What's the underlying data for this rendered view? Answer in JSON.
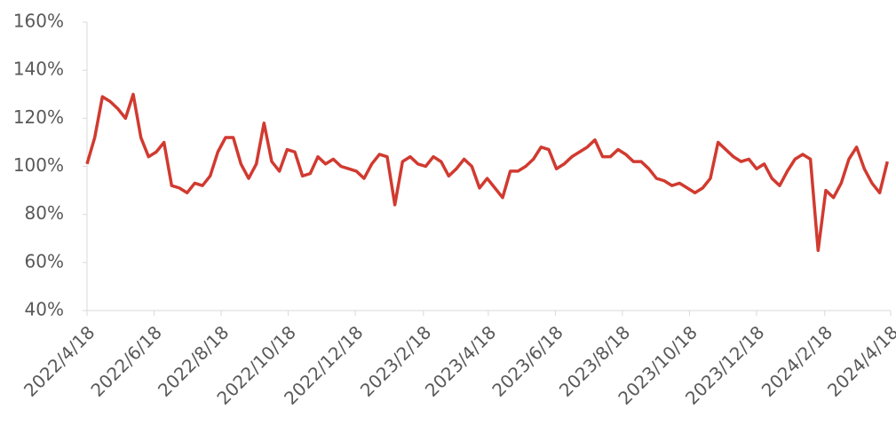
{
  "chart_data": {
    "type": "line",
    "x": [
      "2022/4/18",
      "2022/4/25",
      "2022/5/2",
      "2022/5/9",
      "2022/5/16",
      "2022/5/23",
      "2022/5/30",
      "2022/6/6",
      "2022/6/13",
      "2022/6/20",
      "2022/6/27",
      "2022/7/4",
      "2022/7/11",
      "2022/7/18",
      "2022/7/25",
      "2022/8/1",
      "2022/8/8",
      "2022/8/15",
      "2022/8/22",
      "2022/8/29",
      "2022/9/5",
      "2022/9/12",
      "2022/9/19",
      "2022/9/26",
      "2022/10/3",
      "2022/10/10",
      "2022/10/17",
      "2022/10/24",
      "2022/10/31",
      "2022/11/7",
      "2022/11/14",
      "2022/11/21",
      "2022/11/28",
      "2022/12/5",
      "2022/12/12",
      "2022/12/19",
      "2022/12/26",
      "2023/1/2",
      "2023/1/9",
      "2023/1/16",
      "2023/1/23",
      "2023/1/30",
      "2023/2/6",
      "2023/2/13",
      "2023/2/20",
      "2023/2/27",
      "2023/3/6",
      "2023/3/13",
      "2023/3/20",
      "2023/3/27",
      "2023/4/3",
      "2023/4/10",
      "2023/4/17",
      "2023/4/24",
      "2023/5/1",
      "2023/5/8",
      "2023/5/15",
      "2023/5/22",
      "2023/5/29",
      "2023/6/5",
      "2023/6/12",
      "2023/6/19",
      "2023/6/26",
      "2023/7/3",
      "2023/7/10",
      "2023/7/17",
      "2023/7/24",
      "2023/7/31",
      "2023/8/7",
      "2023/8/14",
      "2023/8/21",
      "2023/8/28",
      "2023/9/4",
      "2023/9/11",
      "2023/9/18",
      "2023/9/25",
      "2023/10/2",
      "2023/10/9",
      "2023/10/16",
      "2023/10/23",
      "2023/10/30",
      "2023/11/6",
      "2023/11/13",
      "2023/11/20",
      "2023/11/27",
      "2023/12/4",
      "2023/12/11",
      "2023/12/18",
      "2023/12/25",
      "2024/1/1",
      "2024/1/8",
      "2024/1/15",
      "2024/1/22",
      "2024/1/29",
      "2024/2/5",
      "2024/2/12",
      "2024/2/19",
      "2024/2/26",
      "2024/3/4",
      "2024/3/11",
      "2024/3/18",
      "2024/3/25",
      "2024/4/1",
      "2024/4/8",
      "2024/4/15"
    ],
    "series": [
      {
        "color": "#d13a30",
        "values": [
          101,
          112,
          129,
          127,
          124,
          120,
          130,
          112,
          104,
          106,
          110,
          92,
          91,
          89,
          93,
          92,
          96,
          106,
          112,
          112,
          101,
          95,
          101,
          118,
          102,
          98,
          107,
          106,
          96,
          97,
          104,
          101,
          103,
          100,
          99,
          98,
          95,
          101,
          105,
          104,
          84,
          102,
          104,
          101,
          100,
          104,
          102,
          96,
          99,
          103,
          100,
          91,
          95,
          91,
          87,
          98,
          98,
          100,
          103,
          108,
          107,
          99,
          101,
          104,
          106,
          108,
          111,
          104,
          104,
          107,
          105,
          102,
          102,
          99,
          95,
          94,
          92,
          93,
          91,
          89,
          91,
          95,
          110,
          107,
          104,
          102,
          103,
          99,
          101,
          95,
          92,
          98,
          103,
          105,
          103,
          65,
          90,
          87,
          93,
          103,
          108,
          99,
          93,
          89,
          102
        ]
      }
    ],
    "xlim": [
      "2022/4/18",
      "2024/4/18"
    ],
    "xticks": [
      "2022/4/18",
      "2022/6/18",
      "2022/8/18",
      "2022/10/18",
      "2022/12/18",
      "2023/2/18",
      "2023/4/18",
      "2023/6/18",
      "2023/8/18",
      "2023/10/18",
      "2023/12/18",
      "2024/2/18",
      "2024/4/18"
    ],
    "ylim": [
      40,
      160
    ],
    "yticks": [
      {
        "value": 40,
        "label": "40%"
      },
      {
        "value": 60,
        "label": "60%"
      },
      {
        "value": 80,
        "label": "80%"
      },
      {
        "value": 100,
        "label": "100%"
      },
      {
        "value": 120,
        "label": "120%"
      },
      {
        "value": 140,
        "label": "140%"
      },
      {
        "value": 160,
        "label": "160%"
      }
    ]
  }
}
